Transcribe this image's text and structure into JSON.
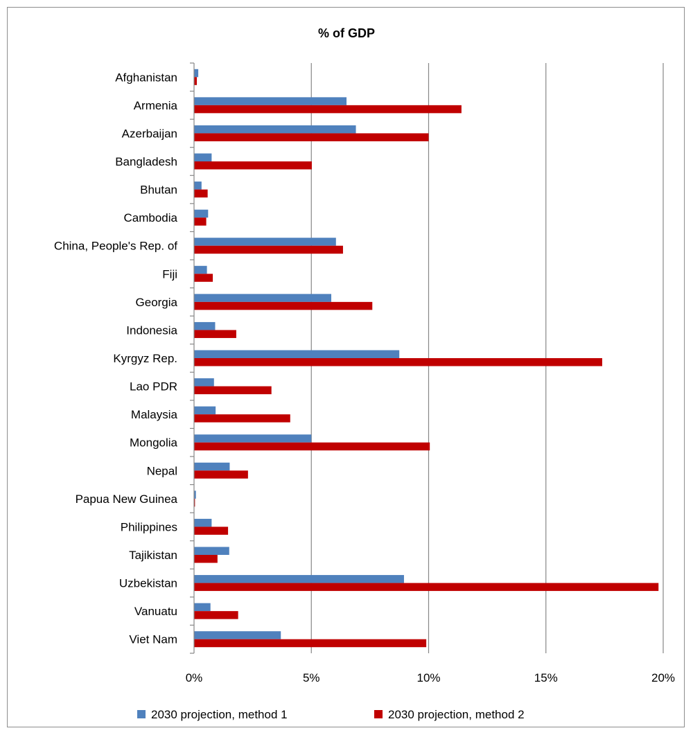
{
  "chart_data": {
    "type": "bar",
    "orientation": "horizontal",
    "title": "% of GDP",
    "xlabel": "",
    "ylabel": "",
    "xlim": [
      0,
      20
    ],
    "x_ticks": [
      "0%",
      "5%",
      "10%",
      "15%",
      "20%"
    ],
    "grid": true,
    "legend_position": "bottom",
    "categories": [
      "Afghanistan",
      "Armenia",
      "Azerbaijan",
      "Bangladesh",
      "Bhutan",
      "Cambodia",
      "China, People's Rep. of",
      "Fiji",
      "Georgia",
      "Indonesia",
      "Kyrgyz Rep.",
      "Lao PDR",
      "Malaysia",
      "Mongolia",
      "Nepal",
      "Papua New Guinea",
      "Philippines",
      "Tajikistan",
      "Uzbekistan",
      "Vanuatu",
      "Viet Nam"
    ],
    "series": [
      {
        "name": "2030 projection, method 1",
        "color": "#4f81bd",
        "values": [
          0.18,
          6.5,
          6.9,
          0.75,
          0.32,
          0.6,
          6.05,
          0.55,
          5.85,
          0.9,
          8.75,
          0.85,
          0.92,
          5.0,
          1.52,
          0.08,
          0.75,
          1.5,
          8.95,
          0.7,
          3.7
        ]
      },
      {
        "name": "2030 projection, method 2",
        "color": "#c00000",
        "values": [
          0.12,
          11.4,
          10.0,
          5.02,
          0.58,
          0.52,
          6.35,
          0.8,
          7.6,
          1.8,
          17.4,
          3.3,
          4.1,
          10.05,
          2.3,
          0.04,
          1.45,
          1.0,
          19.8,
          1.88,
          9.9
        ]
      }
    ]
  }
}
